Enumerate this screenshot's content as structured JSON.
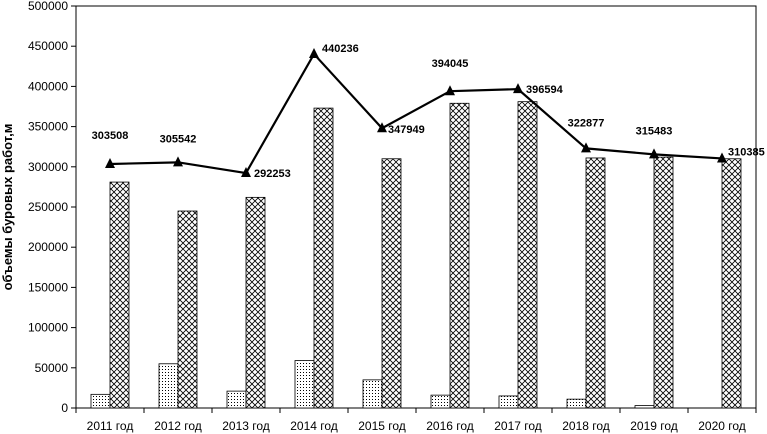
{
  "chart_data": {
    "type": "bar",
    "title": "",
    "xlabel": "",
    "ylabel": "объемы буровых работ,м",
    "ylim": [
      0,
      500000
    ],
    "yticks": [
      0,
      50000,
      100000,
      150000,
      200000,
      250000,
      300000,
      350000,
      400000,
      450000,
      500000
    ],
    "grid": false,
    "legend": "none",
    "categories": [
      "2011 год",
      "2012 год",
      "2013 год",
      "2014 год",
      "2015 год",
      "2016 год",
      "2017 год",
      "2018 год",
      "2019 год",
      "2020 год"
    ],
    "series": [
      {
        "type": "bar",
        "pattern": "dotted",
        "values": [
          17000,
          55000,
          21000,
          59000,
          35000,
          16000,
          15000,
          11000,
          3000,
          0
        ]
      },
      {
        "type": "bar",
        "pattern": "crosshatch",
        "values": [
          281000,
          245000,
          262000,
          373000,
          310000,
          379000,
          381000,
          311000,
          312000,
          310000
        ]
      },
      {
        "type": "line",
        "marker": "triangle",
        "values": [
          303508,
          305542,
          292253,
          440236,
          347949,
          394045,
          396594,
          322877,
          315483,
          310385
        ],
        "labels": [
          "303508",
          "305542",
          "292253",
          "440236",
          "347949",
          "394045",
          "396594",
          "322877",
          "315483",
          "310385"
        ]
      }
    ]
  }
}
